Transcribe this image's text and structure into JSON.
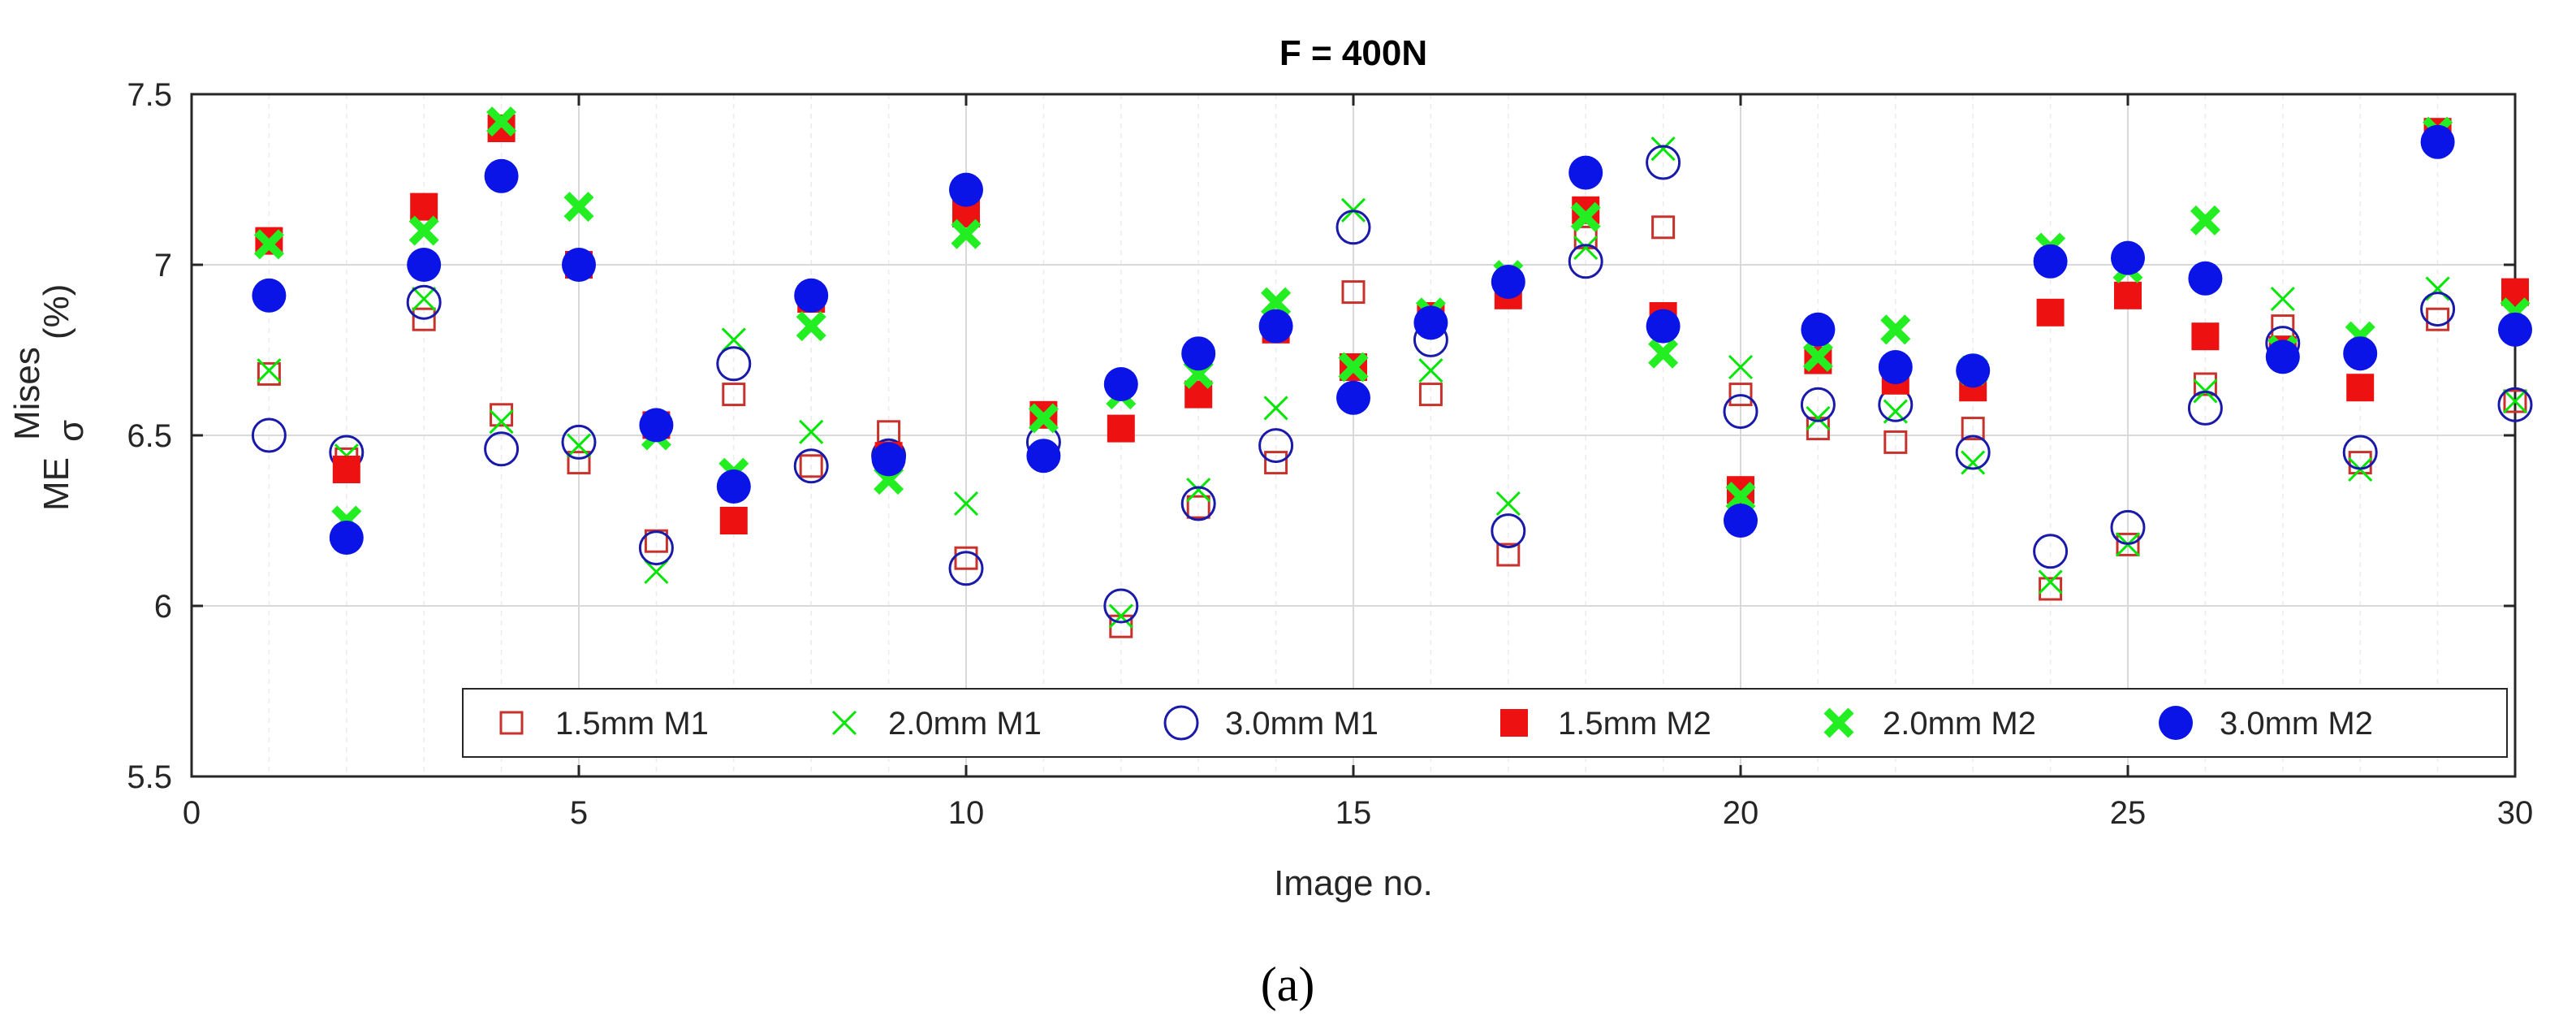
{
  "chart_data": {
    "type": "scatter",
    "title": "F = 400N",
    "xlabel": "Image no.",
    "ylabel_main": "ME",
    "ylabel_sub": "σ",
    "ylabel_sup": "Mises",
    "ylabel_unit": "(%)",
    "xlim": [
      0,
      30
    ],
    "ylim": [
      5.5,
      7.5
    ],
    "xticks": [
      0,
      5,
      10,
      15,
      20,
      25,
      30
    ],
    "yticks": [
      5.5,
      6,
      6.5,
      7,
      7.5
    ],
    "xtick_labels": [
      "0",
      "5",
      "10",
      "15",
      "20",
      "25",
      "30"
    ],
    "ytick_labels": [
      "5.5",
      "6",
      "6.5",
      "7",
      "7.5"
    ],
    "grid": true,
    "legend_position": "bottom-right",
    "caption": "(a)",
    "x": [
      1,
      2,
      3,
      4,
      5,
      6,
      7,
      8,
      9,
      10,
      11,
      12,
      13,
      14,
      15,
      16,
      17,
      18,
      19,
      20,
      21,
      22,
      23,
      24,
      25,
      26,
      27,
      28,
      29,
      30
    ],
    "series": [
      {
        "name": "1.5mm M1",
        "marker": "square-open",
        "color": "#c8322d",
        "values": [
          6.68,
          6.43,
          6.84,
          6.56,
          6.42,
          6.19,
          6.62,
          6.41,
          6.51,
          6.14,
          6.56,
          5.94,
          6.29,
          6.42,
          6.92,
          6.62,
          6.15,
          7.08,
          7.11,
          6.62,
          6.52,
          6.48,
          6.52,
          6.05,
          6.18,
          6.65,
          6.82,
          6.42,
          6.84,
          6.6
        ]
      },
      {
        "name": "2.0mm M1",
        "marker": "x",
        "color": "#00e600",
        "values": [
          6.69,
          6.44,
          6.9,
          6.54,
          6.47,
          6.1,
          6.78,
          6.51,
          6.37,
          6.3,
          6.55,
          5.97,
          6.34,
          6.58,
          7.16,
          6.69,
          6.3,
          7.05,
          7.34,
          6.7,
          6.55,
          6.57,
          6.42,
          6.07,
          6.18,
          6.63,
          6.9,
          6.4,
          6.93,
          6.6
        ]
      },
      {
        "name": "3.0mm M1",
        "marker": "circle-open",
        "color": "#1a1aaa",
        "values": [
          6.5,
          6.45,
          6.89,
          6.46,
          6.48,
          6.17,
          6.71,
          6.41,
          6.44,
          6.11,
          6.48,
          6.0,
          6.3,
          6.47,
          7.11,
          6.78,
          6.22,
          7.01,
          7.3,
          6.57,
          6.59,
          6.59,
          6.45,
          6.16,
          6.23,
          6.58,
          6.77,
          6.45,
          6.87,
          6.59
        ]
      },
      {
        "name": "1.5mm M2",
        "marker": "square-filled",
        "color": "#ee1111",
        "values": [
          7.07,
          6.4,
          7.17,
          7.4,
          7.0,
          6.53,
          6.25,
          6.9,
          6.44,
          7.15,
          6.56,
          6.52,
          6.62,
          6.81,
          6.7,
          6.85,
          6.91,
          7.16,
          6.85,
          6.34,
          6.72,
          6.66,
          6.64,
          6.86,
          6.91,
          6.79,
          6.75,
          6.64,
          7.39,
          6.92
        ]
      },
      {
        "name": "2.0mm M2",
        "marker": "x-bold",
        "color": "#22ee22",
        "values": [
          7.06,
          6.25,
          7.1,
          7.42,
          7.17,
          6.5,
          6.39,
          6.82,
          6.37,
          7.09,
          6.55,
          6.62,
          6.68,
          6.89,
          6.7,
          6.86,
          6.97,
          7.14,
          6.74,
          6.32,
          6.73,
          6.81,
          6.69,
          7.05,
          6.99,
          7.13,
          6.75,
          6.79,
          7.39,
          6.86
        ]
      },
      {
        "name": "3.0mm M2",
        "marker": "circle-filled",
        "color": "#0a14e6",
        "values": [
          6.91,
          6.2,
          7.0,
          7.26,
          7.0,
          6.53,
          6.35,
          6.91,
          6.43,
          7.22,
          6.44,
          6.65,
          6.74,
          6.82,
          6.61,
          6.83,
          6.95,
          7.27,
          6.82,
          6.25,
          6.81,
          6.7,
          6.69,
          7.01,
          7.02,
          6.96,
          6.73,
          6.74,
          7.36,
          6.81
        ]
      }
    ]
  }
}
